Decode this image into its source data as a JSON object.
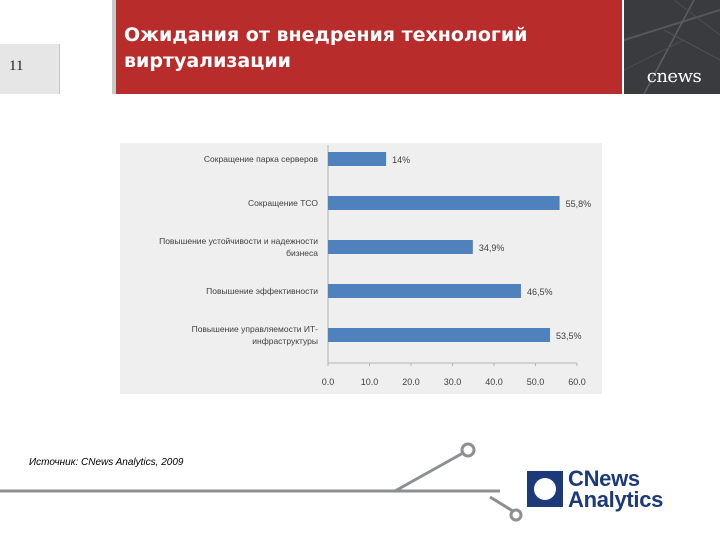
{
  "slide": {
    "number": "11",
    "title_line1": "Ожидания от внедрения технологий",
    "title_line2": "виртуализации",
    "source": "Источник: CNews Analytics, 2009",
    "colors": {
      "title_band": "#b82d2c",
      "bar": "#4f81bd",
      "logo_blue": "#1c3a7a"
    }
  },
  "header_logo": {
    "text": "cnews",
    "icon": "cnews-logo-icon"
  },
  "footer_logo": {
    "line1": "CNews",
    "line2": "Analytics",
    "icon": "cnews-analytics-logo-icon"
  },
  "chart_data": {
    "type": "bar",
    "orientation": "horizontal",
    "categories": [
      [
        "Сокращение парка серверов"
      ],
      [
        "Сокращение ТСО"
      ],
      [
        "Повышение устойчивости и надежности",
        "бизнеса"
      ],
      [
        "Повышение эффективности"
      ],
      [
        "Повышение управляемости ИТ-",
        "инфраструктуры"
      ]
    ],
    "values": [
      14,
      55.8,
      34.9,
      46.5,
      53.5
    ],
    "value_labels": [
      "14%",
      "55,8%",
      "34,9%",
      "46,5%",
      "53,5%"
    ],
    "xlim": [
      0,
      60
    ],
    "xticks": [
      0,
      10,
      20,
      30,
      40,
      50,
      60
    ],
    "xtick_labels": [
      "0.0",
      "10.0",
      "20.0",
      "30.0",
      "40.0",
      "50.0",
      "60.0"
    ],
    "grid": false,
    "legend": "none"
  }
}
